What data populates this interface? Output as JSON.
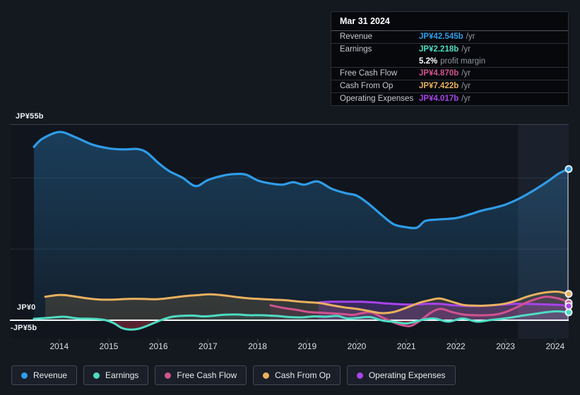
{
  "colors": {
    "page_background": "#14181f",
    "plot_background": "#11151d",
    "zero_line": "#f2f5f7",
    "gridline": "#262c37",
    "top_line": "#39404e",
    "highlight_band": "rgba(150,190,240,0.075)",
    "negative_fill": "rgba(205,58,80,0.35)"
  },
  "y_axis": {
    "top": "JP¥55b",
    "zero": "JP¥0",
    "bottom": "-JP¥5b"
  },
  "tooltip": {
    "date": "Mar 31 2024",
    "suffix": "/yr",
    "profit_margin_value": "5.2%",
    "profit_margin_text": "profit margin",
    "rows": [
      {
        "label": "Revenue",
        "value": "JP¥42.545b"
      },
      {
        "label": "Earnings",
        "value": "JP¥2.218b"
      },
      {
        "label": "Free Cash Flow",
        "value": "JP¥4.870b"
      },
      {
        "label": "Cash From Op",
        "value": "JP¥7.422b"
      },
      {
        "label": "Operating Expenses",
        "value": "JP¥4.017b"
      }
    ]
  },
  "chart_data": {
    "type": "area",
    "unit": "JP¥ billions per year",
    "x_ticks": [
      2014,
      2015,
      2016,
      2017,
      2018,
      2019,
      2020,
      2021,
      2022,
      2023,
      2024
    ],
    "x_range": [
      2013.49,
      2024.27
    ],
    "y_range": [
      -5.15,
      55
    ],
    "gridlines_y": [
      40,
      20
    ],
    "highlight_from_x": 2023.25,
    "legend_position": "bottom",
    "series": [
      {
        "name": "Revenue",
        "color": "#2f9ce8",
        "points": [
          [
            2013.49,
            48.7
          ],
          [
            2013.66,
            51.0
          ],
          [
            2014.0,
            52.9
          ],
          [
            2014.3,
            51.6
          ],
          [
            2014.66,
            49.4
          ],
          [
            2015.0,
            48.3
          ],
          [
            2015.3,
            48.0
          ],
          [
            2015.58,
            48.1
          ],
          [
            2015.77,
            47.1
          ],
          [
            2016.0,
            44.2
          ],
          [
            2016.22,
            41.9
          ],
          [
            2016.48,
            40.1
          ],
          [
            2016.75,
            37.7
          ],
          [
            2017.0,
            39.4
          ],
          [
            2017.29,
            40.6
          ],
          [
            2017.55,
            41.1
          ],
          [
            2017.77,
            40.9
          ],
          [
            2018.0,
            39.3
          ],
          [
            2018.24,
            38.5
          ],
          [
            2018.5,
            38.1
          ],
          [
            2018.72,
            38.8
          ],
          [
            2018.94,
            38.1
          ],
          [
            2019.21,
            39.0
          ],
          [
            2019.5,
            36.9
          ],
          [
            2019.78,
            35.7
          ],
          [
            2020.0,
            35.0
          ],
          [
            2020.24,
            32.7
          ],
          [
            2020.5,
            29.6
          ],
          [
            2020.74,
            27.0
          ],
          [
            2020.97,
            26.2
          ],
          [
            2021.21,
            26.0
          ],
          [
            2021.38,
            27.9
          ],
          [
            2021.63,
            28.3
          ],
          [
            2022.0,
            28.7
          ],
          [
            2022.29,
            29.8
          ],
          [
            2022.52,
            30.8
          ],
          [
            2022.77,
            31.6
          ],
          [
            2023.0,
            32.5
          ],
          [
            2023.29,
            34.3
          ],
          [
            2023.57,
            36.5
          ],
          [
            2023.86,
            39.1
          ],
          [
            2024.07,
            41.2
          ],
          [
            2024.27,
            42.5
          ]
        ]
      },
      {
        "name": "Earnings",
        "color": "#4edcc3",
        "points": [
          [
            2013.49,
            0.4
          ],
          [
            2013.8,
            0.7
          ],
          [
            2014.09,
            1.0
          ],
          [
            2014.37,
            0.5
          ],
          [
            2014.68,
            0.4
          ],
          [
            2014.94,
            0.0
          ],
          [
            2015.11,
            -0.9
          ],
          [
            2015.25,
            -2.1
          ],
          [
            2015.4,
            -2.6
          ],
          [
            2015.6,
            -2.4
          ],
          [
            2015.82,
            -1.3
          ],
          [
            2016.05,
            0.0
          ],
          [
            2016.25,
            0.9
          ],
          [
            2016.44,
            1.2
          ],
          [
            2016.68,
            1.3
          ],
          [
            2016.91,
            1.1
          ],
          [
            2017.08,
            1.2
          ],
          [
            2017.29,
            1.5
          ],
          [
            2017.58,
            1.6
          ],
          [
            2017.82,
            1.4
          ],
          [
            2018.07,
            1.4
          ],
          [
            2018.39,
            1.2
          ],
          [
            2018.64,
            0.9
          ],
          [
            2018.9,
            0.8
          ],
          [
            2019.14,
            1.1
          ],
          [
            2019.38,
            1.0
          ],
          [
            2019.61,
            1.2
          ],
          [
            2019.81,
            0.5
          ],
          [
            2020.04,
            0.7
          ],
          [
            2020.27,
            0.9
          ],
          [
            2020.52,
            -0.1
          ],
          [
            2020.78,
            -0.5
          ],
          [
            2021.01,
            -0.9
          ],
          [
            2021.32,
            0.1
          ],
          [
            2021.56,
            0.5
          ],
          [
            2021.85,
            -0.4
          ],
          [
            2022.13,
            0.5
          ],
          [
            2022.42,
            -0.4
          ],
          [
            2022.67,
            0.0
          ],
          [
            2022.92,
            0.4
          ],
          [
            2023.13,
            0.8
          ],
          [
            2023.34,
            1.3
          ],
          [
            2023.6,
            1.8
          ],
          [
            2023.84,
            2.3
          ],
          [
            2024.06,
            2.5
          ],
          [
            2024.27,
            2.2
          ]
        ]
      },
      {
        "name": "Free Cash Flow",
        "color": "#d0538f",
        "points": [
          [
            2018.26,
            4.2
          ],
          [
            2018.5,
            3.5
          ],
          [
            2018.79,
            2.9
          ],
          [
            2019.03,
            2.3
          ],
          [
            2019.28,
            2.1
          ],
          [
            2019.53,
            1.9
          ],
          [
            2019.75,
            1.7
          ],
          [
            2019.93,
            1.5
          ],
          [
            2020.11,
            2.0
          ],
          [
            2020.3,
            2.2
          ],
          [
            2020.5,
            0.9
          ],
          [
            2020.72,
            -0.5
          ],
          [
            2020.92,
            -1.4
          ],
          [
            2021.09,
            -1.6
          ],
          [
            2021.29,
            0.0
          ],
          [
            2021.49,
            2.1
          ],
          [
            2021.69,
            3.2
          ],
          [
            2021.92,
            2.3
          ],
          [
            2022.15,
            1.6
          ],
          [
            2022.38,
            1.4
          ],
          [
            2022.6,
            1.4
          ],
          [
            2022.8,
            1.6
          ],
          [
            2023.0,
            2.3
          ],
          [
            2023.21,
            3.5
          ],
          [
            2023.41,
            4.9
          ],
          [
            2023.63,
            6.0
          ],
          [
            2023.81,
            6.6
          ],
          [
            2024.0,
            6.3
          ],
          [
            2024.14,
            5.8
          ],
          [
            2024.27,
            4.9
          ]
        ]
      },
      {
        "name": "Cash From Op",
        "color": "#e9b15e",
        "points": [
          [
            2013.72,
            6.6
          ],
          [
            2014.0,
            7.1
          ],
          [
            2014.26,
            6.8
          ],
          [
            2014.54,
            6.2
          ],
          [
            2014.83,
            5.8
          ],
          [
            2015.11,
            5.8
          ],
          [
            2015.4,
            6.0
          ],
          [
            2015.68,
            6.0
          ],
          [
            2015.97,
            5.9
          ],
          [
            2016.25,
            6.3
          ],
          [
            2016.54,
            6.8
          ],
          [
            2016.82,
            7.1
          ],
          [
            2017.03,
            7.3
          ],
          [
            2017.25,
            7.1
          ],
          [
            2017.53,
            6.6
          ],
          [
            2017.79,
            6.2
          ],
          [
            2018.02,
            6.0
          ],
          [
            2018.3,
            5.8
          ],
          [
            2018.59,
            5.6
          ],
          [
            2018.87,
            5.2
          ],
          [
            2019.1,
            5.0
          ],
          [
            2019.27,
            4.8
          ],
          [
            2019.5,
            4.2
          ],
          [
            2019.75,
            3.6
          ],
          [
            2020.0,
            3.2
          ],
          [
            2020.24,
            2.6
          ],
          [
            2020.5,
            2.0
          ],
          [
            2020.74,
            2.3
          ],
          [
            2021.0,
            3.5
          ],
          [
            2021.26,
            4.9
          ],
          [
            2021.49,
            5.7
          ],
          [
            2021.68,
            6.1
          ],
          [
            2021.92,
            5.2
          ],
          [
            2022.15,
            4.3
          ],
          [
            2022.38,
            4.1
          ],
          [
            2022.6,
            4.1
          ],
          [
            2022.8,
            4.3
          ],
          [
            2023.0,
            4.7
          ],
          [
            2023.21,
            5.5
          ],
          [
            2023.43,
            6.6
          ],
          [
            2023.64,
            7.4
          ],
          [
            2023.86,
            7.9
          ],
          [
            2024.06,
            8.0
          ],
          [
            2024.27,
            7.4
          ]
        ]
      },
      {
        "name": "Operating Expenses",
        "color": "#a843ea",
        "points": [
          [
            2019.23,
            5.0
          ],
          [
            2019.5,
            5.2
          ],
          [
            2019.78,
            5.2
          ],
          [
            2020.07,
            5.2
          ],
          [
            2020.35,
            5.0
          ],
          [
            2020.61,
            4.7
          ],
          [
            2020.85,
            4.5
          ],
          [
            2021.14,
            4.4
          ],
          [
            2021.42,
            4.6
          ],
          [
            2021.66,
            4.6
          ],
          [
            2021.95,
            4.2
          ],
          [
            2022.21,
            4.0
          ],
          [
            2022.46,
            4.0
          ],
          [
            2022.7,
            4.2
          ],
          [
            2022.95,
            4.4
          ],
          [
            2023.18,
            4.6
          ],
          [
            2023.41,
            4.6
          ],
          [
            2023.66,
            4.5
          ],
          [
            2023.89,
            4.4
          ],
          [
            2024.09,
            4.3
          ],
          [
            2024.27,
            4.0
          ]
        ]
      }
    ]
  }
}
